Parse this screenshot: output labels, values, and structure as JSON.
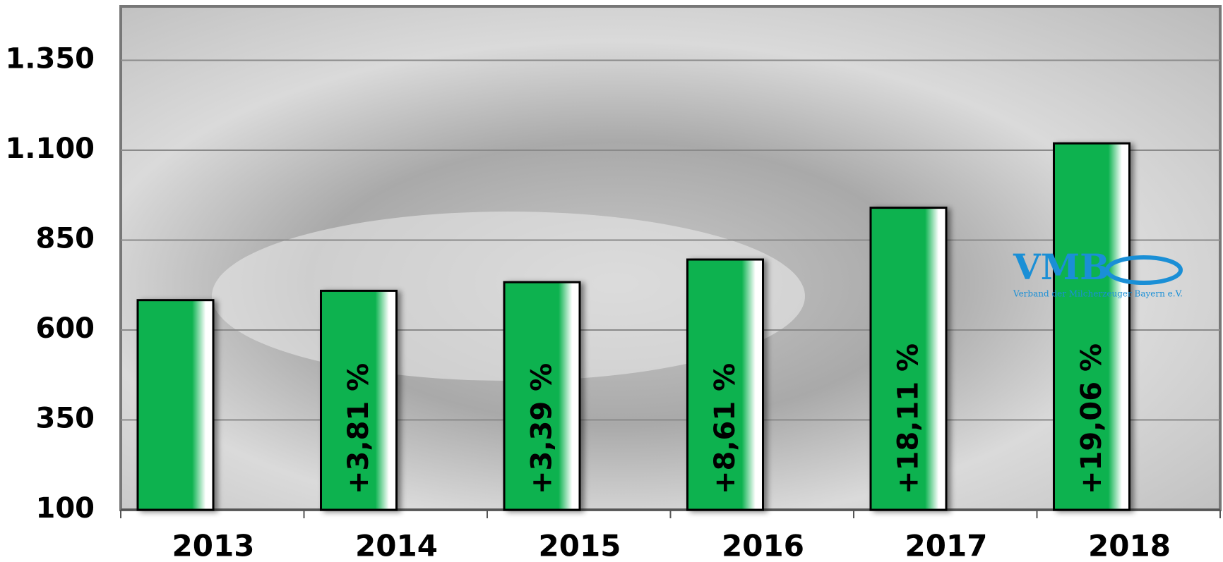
{
  "chart_data": {
    "type": "bar",
    "categories": [
      "2013",
      "2014",
      "2015",
      "2016",
      "2017",
      "2018"
    ],
    "values": [
      683,
      709,
      733,
      796,
      940,
      1119
    ],
    "annotations": [
      null,
      "+3,81 %",
      "+3,39 %",
      "+8,61 %",
      "+18,11 %",
      "+19,06 %"
    ],
    "color": "#0bb24f",
    "ylim": [
      100,
      1500
    ],
    "yticks": [
      100,
      350,
      600,
      850,
      {
        "value": 1100,
        "label": "1.100"
      },
      {
        "value": 1350,
        "label": "1.350"
      }
    ],
    "grid": true,
    "logo": {
      "title": "VMB",
      "subtitle": "Verband der Milcherzeuger Bayern e.V."
    }
  }
}
